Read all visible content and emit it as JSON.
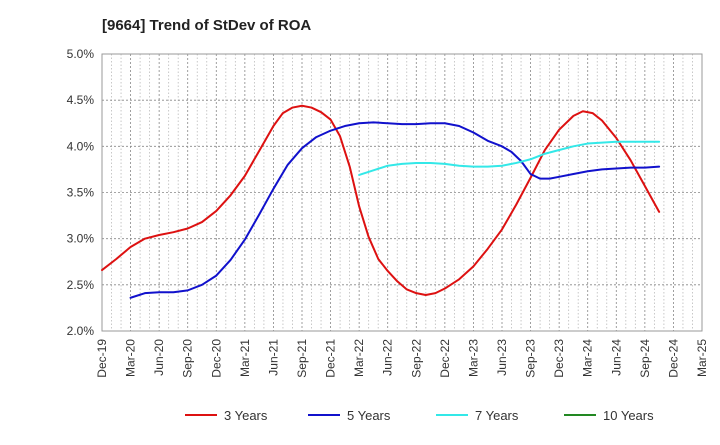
{
  "chart_data": {
    "type": "line",
    "title": "[9664]  Trend of StDev of ROA",
    "xlabel": "",
    "ylabel": "",
    "ylim": [
      0.02,
      0.05
    ],
    "y_ticks": [
      {
        "value": 0.02,
        "label": "2.0%"
      },
      {
        "value": 0.025,
        "label": "2.5%"
      },
      {
        "value": 0.03,
        "label": "3.0%"
      },
      {
        "value": 0.035,
        "label": "3.5%"
      },
      {
        "value": 0.04,
        "label": "4.0%"
      },
      {
        "value": 0.045,
        "label": "4.5%"
      },
      {
        "value": 0.05,
        "label": "5.0%"
      }
    ],
    "x_ticks": [
      "Dec-19",
      "Mar-20",
      "Jun-20",
      "Sep-20",
      "Dec-20",
      "Mar-21",
      "Jun-21",
      "Sep-21",
      "Dec-21",
      "Mar-22",
      "Jun-22",
      "Sep-22",
      "Dec-22",
      "Mar-23",
      "Jun-23",
      "Sep-23",
      "Dec-23",
      "Mar-24",
      "Jun-24",
      "Sep-24",
      "Dec-24",
      "Mar-25"
    ],
    "grid": true,
    "legend_position": "bottom",
    "series": [
      {
        "name": "3 Years",
        "color": "#dd1111",
        "points": [
          [
            0,
            2.66
          ],
          [
            0.5,
            2.78
          ],
          [
            1,
            2.91
          ],
          [
            1.5,
            3.0
          ],
          [
            2,
            3.04
          ],
          [
            2.5,
            3.07
          ],
          [
            3,
            3.11
          ],
          [
            3.5,
            3.18
          ],
          [
            4,
            3.3
          ],
          [
            4.5,
            3.47
          ],
          [
            5,
            3.68
          ],
          [
            5.5,
            3.95
          ],
          [
            6,
            4.22
          ],
          [
            6.33,
            4.36
          ],
          [
            6.67,
            4.42
          ],
          [
            7,
            4.44
          ],
          [
            7.33,
            4.42
          ],
          [
            7.67,
            4.37
          ],
          [
            8,
            4.29
          ],
          [
            8.33,
            4.11
          ],
          [
            8.67,
            3.78
          ],
          [
            9,
            3.35
          ],
          [
            9.33,
            3.02
          ],
          [
            9.67,
            2.78
          ],
          [
            10,
            2.65
          ],
          [
            10.33,
            2.54
          ],
          [
            10.67,
            2.45
          ],
          [
            11,
            2.41
          ],
          [
            11.33,
            2.39
          ],
          [
            11.67,
            2.41
          ],
          [
            12,
            2.46
          ],
          [
            12.5,
            2.56
          ],
          [
            13,
            2.7
          ],
          [
            13.5,
            2.89
          ],
          [
            14,
            3.1
          ],
          [
            14.5,
            3.37
          ],
          [
            15,
            3.66
          ],
          [
            15.5,
            3.96
          ],
          [
            16,
            4.18
          ],
          [
            16.5,
            4.33
          ],
          [
            16.83,
            4.38
          ],
          [
            17.17,
            4.36
          ],
          [
            17.5,
            4.28
          ],
          [
            18,
            4.09
          ],
          [
            18.5,
            3.85
          ],
          [
            19,
            3.57
          ],
          [
            19.5,
            3.29
          ]
        ]
      },
      {
        "name": "5 Years",
        "color": "#1111cc",
        "points": [
          [
            1,
            2.36
          ],
          [
            1.5,
            2.41
          ],
          [
            2,
            2.42
          ],
          [
            2.5,
            2.42
          ],
          [
            3,
            2.44
          ],
          [
            3.5,
            2.5
          ],
          [
            4,
            2.6
          ],
          [
            4.5,
            2.77
          ],
          [
            5,
            2.99
          ],
          [
            5.5,
            3.26
          ],
          [
            6,
            3.54
          ],
          [
            6.5,
            3.8
          ],
          [
            7,
            3.98
          ],
          [
            7.5,
            4.1
          ],
          [
            8,
            4.17
          ],
          [
            8.5,
            4.22
          ],
          [
            9,
            4.25
          ],
          [
            9.5,
            4.26
          ],
          [
            10,
            4.25
          ],
          [
            10.5,
            4.24
          ],
          [
            11,
            4.24
          ],
          [
            11.5,
            4.25
          ],
          [
            12,
            4.25
          ],
          [
            12.5,
            4.22
          ],
          [
            13,
            4.15
          ],
          [
            13.5,
            4.06
          ],
          [
            14,
            4.0
          ],
          [
            14.33,
            3.94
          ],
          [
            14.67,
            3.84
          ],
          [
            15,
            3.7
          ],
          [
            15.33,
            3.65
          ],
          [
            15.67,
            3.65
          ],
          [
            16,
            3.67
          ],
          [
            16.5,
            3.7
          ],
          [
            17,
            3.73
          ],
          [
            17.5,
            3.75
          ],
          [
            18,
            3.76
          ],
          [
            18.5,
            3.77
          ],
          [
            19,
            3.77
          ],
          [
            19.5,
            3.78
          ]
        ]
      },
      {
        "name": "7 Years",
        "color": "#33e8e8",
        "points": [
          [
            9,
            3.69
          ],
          [
            9.5,
            3.74
          ],
          [
            10,
            3.79
          ],
          [
            10.5,
            3.81
          ],
          [
            11,
            3.82
          ],
          [
            11.5,
            3.82
          ],
          [
            12,
            3.81
          ],
          [
            12.5,
            3.79
          ],
          [
            13,
            3.78
          ],
          [
            13.5,
            3.78
          ],
          [
            14,
            3.79
          ],
          [
            14.5,
            3.82
          ],
          [
            15,
            3.86
          ],
          [
            15.5,
            3.92
          ],
          [
            16,
            3.96
          ],
          [
            16.5,
            4.0
          ],
          [
            17,
            4.03
          ],
          [
            17.5,
            4.04
          ],
          [
            18,
            4.05
          ],
          [
            18.5,
            4.05
          ],
          [
            19,
            4.05
          ],
          [
            19.5,
            4.05
          ]
        ]
      },
      {
        "name": "10 Years",
        "color": "#228822",
        "points": []
      }
    ]
  }
}
